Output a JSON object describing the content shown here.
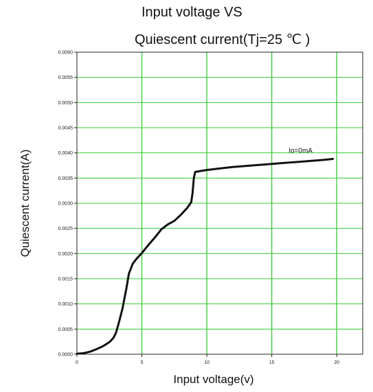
{
  "chart_data": {
    "type": "line",
    "title_lines": [
      "Input voltage VS",
      "Quiescent current(Tj=25 ℃ )"
    ],
    "xlabel": "Input voltage(v)",
    "ylabel": "Quiescent current(A)",
    "xlim": [
      0,
      22
    ],
    "ylim": [
      0,
      0.006
    ],
    "xticks": [
      0,
      5,
      10,
      15,
      20
    ],
    "xtick_labels": [
      "0",
      "5",
      "10",
      "15",
      "20"
    ],
    "yticks": [
      0,
      0.0005,
      0.001,
      0.0015,
      0.002,
      0.0025,
      0.003,
      0.0035,
      0.004,
      0.0045,
      0.005,
      0.0055,
      0.006
    ],
    "ytick_labels": [
      "0.0000",
      "0.0005",
      "0.0010",
      "0.0015",
      "0.0020",
      "0.0025",
      "0.0030",
      "0.0035",
      "0.0040",
      "0.0045",
      "0.0050",
      "0.0055",
      "0.0060"
    ],
    "grid": true,
    "grid_color": "#33cc33",
    "line_color": "#111111",
    "annotation": {
      "text": "Io=0mA",
      "x": 16.3,
      "y": 0.004
    },
    "series": [
      {
        "x": [
          0,
          0.5,
          1,
          1.5,
          2,
          2.5,
          2.8,
          3.0,
          3.2,
          3.5,
          3.8,
          4.0,
          4.3,
          4.6,
          5.0,
          5.5,
          6.0,
          6.5,
          7.0,
          7.5,
          8.0,
          8.5,
          8.8,
          8.9,
          9.0,
          9.1,
          9.5,
          10,
          11,
          12,
          13,
          14,
          15,
          16,
          17,
          18,
          19,
          19.7
        ],
        "y": [
          1e-05,
          2e-05,
          5e-05,
          0.0001,
          0.00016,
          0.00024,
          0.00032,
          0.00042,
          0.0006,
          0.0009,
          0.0013,
          0.0016,
          0.0018,
          0.0019,
          0.00201,
          0.00217,
          0.00232,
          0.00248,
          0.00258,
          0.00265,
          0.00277,
          0.00291,
          0.00302,
          0.0032,
          0.0035,
          0.00362,
          0.00364,
          0.00366,
          0.00369,
          0.00372,
          0.00374,
          0.00376,
          0.00378,
          0.0038,
          0.00382,
          0.00384,
          0.00386,
          0.00388
        ]
      }
    ]
  }
}
